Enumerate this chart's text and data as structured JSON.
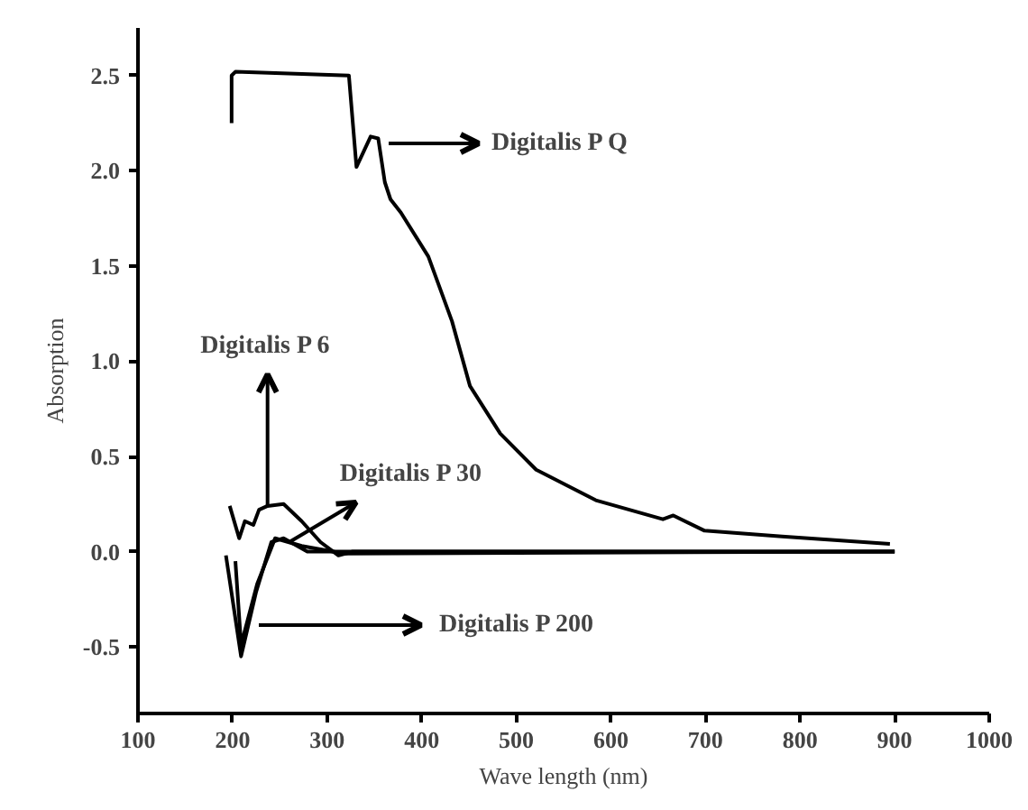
{
  "chart_data": {
    "type": "line",
    "xlabel": "Wave length (nm)",
    "ylabel": "Absorption",
    "xlim": [
      100,
      1000
    ],
    "xticks": [
      100,
      200,
      300,
      400,
      500,
      600,
      700,
      800,
      900,
      1000
    ],
    "ylim": [
      -0.85,
      2.75
    ],
    "yticks": [
      -0.5,
      {
        "value": 0,
        "label": "0.0"
      },
      0.5,
      {
        "value": 1,
        "label": "1.0"
      },
      1.5,
      {
        "value": 2,
        "label": "2.0"
      },
      2.5
    ],
    "line_style": "solid",
    "series": [
      {
        "color": "#000000",
        "x": [
          199,
          199,
          203,
          323,
          331,
          346,
          354,
          361,
          367,
          378,
          407,
          432,
          451,
          483,
          521,
          584,
          655,
          666,
          699,
          781,
          895
        ],
        "values": [
          2.25,
          2.5,
          2.52,
          2.5,
          2.02,
          2.18,
          2.17,
          1.94,
          1.85,
          1.78,
          1.55,
          1.21,
          0.87,
          0.62,
          0.43,
          0.27,
          0.17,
          0.19,
          0.11,
          0.08,
          0.04
        ]
      },
      {
        "color": "#000000",
        "x": [
          197,
          207,
          213,
          222,
          228,
          237,
          254,
          273,
          293,
          312,
          327,
          900
        ],
        "values": [
          0.24,
          0.07,
          0.16,
          0.14,
          0.22,
          0.24,
          0.25,
          0.16,
          0.05,
          -0.02,
          0,
          0
        ]
      },
      {
        "color": "#000000",
        "x": [
          203,
          209,
          226,
          245,
          273,
          318,
          900
        ],
        "values": [
          -0.05,
          -0.49,
          -0.17,
          0.07,
          0.03,
          -0.01,
          0
        ]
      },
      {
        "color": "#000000",
        "x": [
          193,
          209,
          225,
          241,
          254,
          279,
          900
        ],
        "values": [
          -0.02,
          -0.55,
          -0.21,
          0.05,
          0.07,
          0,
          0
        ]
      }
    ],
    "annotations": [
      "Digitalis P Q",
      {
        "text": "Digitalis P 6",
        "x": 237,
        "y": 0.24
      },
      {
        "text": "Digitalis P 30",
        "x": 260,
        "y": 0.05
      },
      "Digitalis P 200"
    ]
  }
}
